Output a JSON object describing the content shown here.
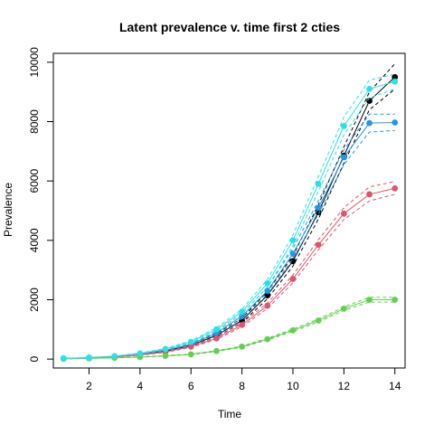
{
  "chart_data": {
    "type": "line",
    "title": "Latent prevalence v. time first 2 cties",
    "xlabel": "Time",
    "ylabel": "Prevalence",
    "xlim": [
      0.6,
      14.4
    ],
    "ylim": [
      -300,
      10300
    ],
    "x_ticks": [
      2,
      4,
      6,
      8,
      10,
      12,
      14
    ],
    "y_ticks": [
      0,
      2000,
      4000,
      6000,
      8000,
      10000
    ],
    "x": [
      1,
      2,
      3,
      4,
      5,
      6,
      7,
      8,
      9,
      10,
      11,
      12,
      13,
      14
    ],
    "grid": false,
    "legend": "none",
    "series": [
      {
        "color": "#000000",
        "values": [
          20,
          40,
          80,
          150,
          270,
          460,
          800,
          1300,
          2150,
          3300,
          4950,
          6850,
          8700,
          9500
        ],
        "band_low": [
          18,
          37,
          74,
          140,
          250,
          430,
          750,
          1230,
          2030,
          3130,
          4720,
          6600,
          8400,
          9100
        ],
        "band_high": [
          22,
          43,
          86,
          160,
          290,
          490,
          850,
          1380,
          2280,
          3480,
          5200,
          7150,
          9000,
          9950
        ]
      },
      {
        "color": "#2297E6",
        "values": [
          20,
          45,
          90,
          170,
          300,
          500,
          880,
          1450,
          2300,
          3550,
          5100,
          6800,
          7950,
          7970
        ],
        "band_low": [
          18,
          42,
          84,
          160,
          280,
          470,
          830,
          1370,
          2180,
          3380,
          4880,
          6550,
          7650,
          7700
        ],
        "band_high": [
          22,
          48,
          96,
          180,
          320,
          530,
          930,
          1530,
          2420,
          3720,
          5330,
          7050,
          8250,
          8250
        ]
      },
      {
        "color": "#DF536B",
        "values": [
          20,
          40,
          75,
          140,
          240,
          420,
          700,
          1150,
          1800,
          2700,
          3850,
          4900,
          5550,
          5750
        ],
        "band_low": [
          18,
          37,
          70,
          130,
          225,
          395,
          660,
          1090,
          1710,
          2570,
          3680,
          4700,
          5330,
          5550
        ],
        "band_high": [
          22,
          43,
          80,
          150,
          255,
          445,
          740,
          1210,
          1890,
          2830,
          4020,
          5100,
          5800,
          5980
        ]
      },
      {
        "color": "#61D04F",
        "values": [
          10,
          25,
          45,
          70,
          110,
          160,
          270,
          420,
          670,
          970,
          1300,
          1700,
          2000,
          2000
        ],
        "band_low": [
          9,
          23,
          42,
          65,
          102,
          150,
          255,
          400,
          640,
          930,
          1250,
          1640,
          1920,
          1920
        ],
        "band_high": [
          11,
          27,
          48,
          75,
          118,
          170,
          285,
          440,
          700,
          1010,
          1350,
          1760,
          2080,
          2080
        ]
      },
      {
        "color": "#28E2E5",
        "values": [
          25,
          50,
          100,
          190,
          340,
          580,
          1000,
          1600,
          2550,
          4000,
          5900,
          7850,
          9100,
          9350
        ],
        "band_low": [
          23,
          46,
          93,
          178,
          318,
          545,
          945,
          1520,
          2430,
          3820,
          5650,
          7550,
          8800,
          9100
        ],
        "band_high": [
          27,
          54,
          107,
          202,
          362,
          615,
          1055,
          1680,
          2680,
          4180,
          6150,
          8150,
          9400,
          9600
        ]
      }
    ]
  }
}
